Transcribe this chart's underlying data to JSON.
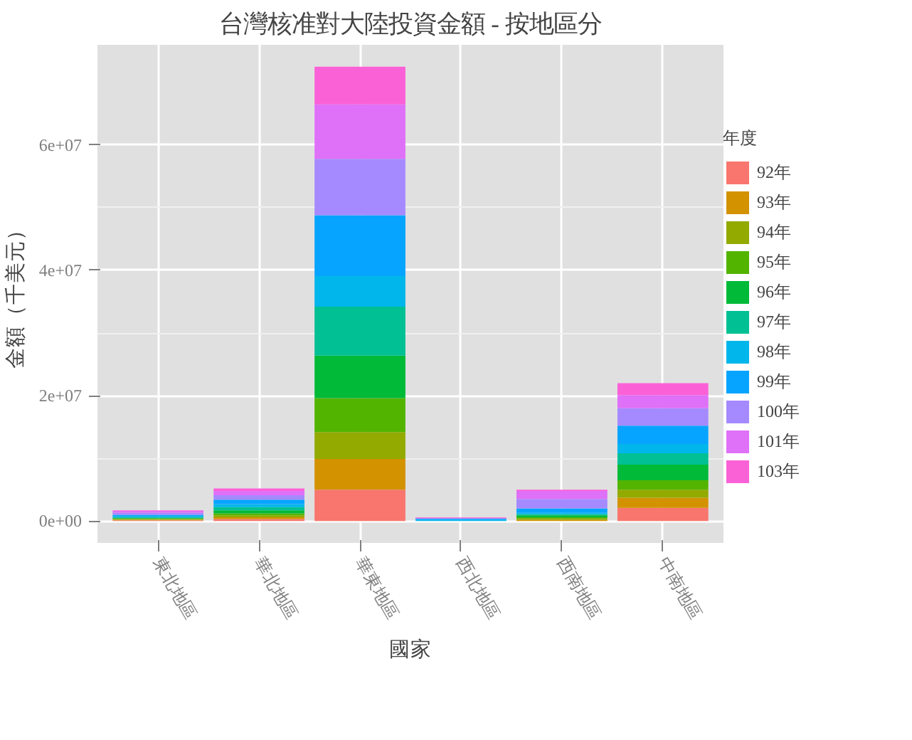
{
  "chart_data": {
    "type": "bar",
    "stacked": true,
    "title": "台灣核准對大陸投資金額 - 按地區分",
    "xlabel": "國家",
    "ylabel": "金額（千美元）",
    "legend_title": "年度",
    "legend": "right",
    "grid": true,
    "categories": [
      "東北地區",
      "華北地區",
      "華東地區",
      "西北地區",
      "西南地區",
      "中南地區"
    ],
    "ylim": [
      -3500000,
      76000000
    ],
    "yticks": [
      {
        "value": 0,
        "label": "0e+00"
      },
      {
        "value": 20000000,
        "label": "2e+07"
      },
      {
        "value": 40000000,
        "label": "4e+07"
      },
      {
        "value": 60000000,
        "label": "6e+07"
      }
    ],
    "series": [
      {
        "name": "92年",
        "color": "#f8766d",
        "values": [
          100000,
          300000,
          5000000,
          0,
          0,
          2100000
        ]
      },
      {
        "name": "93年",
        "color": "#d39200",
        "values": [
          100000,
          300000,
          4900000,
          0,
          200000,
          1600000
        ]
      },
      {
        "name": "94年",
        "color": "#93aa00",
        "values": [
          100000,
          300000,
          4300000,
          0,
          200000,
          1300000
        ]
      },
      {
        "name": "95年",
        "color": "#53b400",
        "values": [
          100000,
          300000,
          5400000,
          0,
          200000,
          1500000
        ]
      },
      {
        "name": "96年",
        "color": "#00ba38",
        "values": [
          100000,
          500000,
          6800000,
          0,
          300000,
          2500000
        ]
      },
      {
        "name": "97年",
        "color": "#00c094",
        "values": [
          100000,
          500000,
          7800000,
          0,
          200000,
          1800000
        ]
      },
      {
        "name": "98年",
        "color": "#00b6eb",
        "values": [
          200000,
          500000,
          4900000,
          200000,
          200000,
          1500000
        ]
      },
      {
        "name": "99年",
        "color": "#06a4ff",
        "values": [
          200000,
          700000,
          9700000,
          200000,
          700000,
          2900000
        ]
      },
      {
        "name": "100年",
        "color": "#a58aff",
        "values": [
          300000,
          700000,
          9000000,
          0,
          1500000,
          2800000
        ]
      },
      {
        "name": "101年",
        "color": "#df70f8",
        "values": [
          300000,
          700000,
          8700000,
          100000,
          1300000,
          2100000
        ]
      },
      {
        "name": "103年",
        "color": "#fb61d7",
        "values": [
          100000,
          400000,
          6000000,
          100000,
          200000,
          1900000
        ]
      }
    ]
  }
}
